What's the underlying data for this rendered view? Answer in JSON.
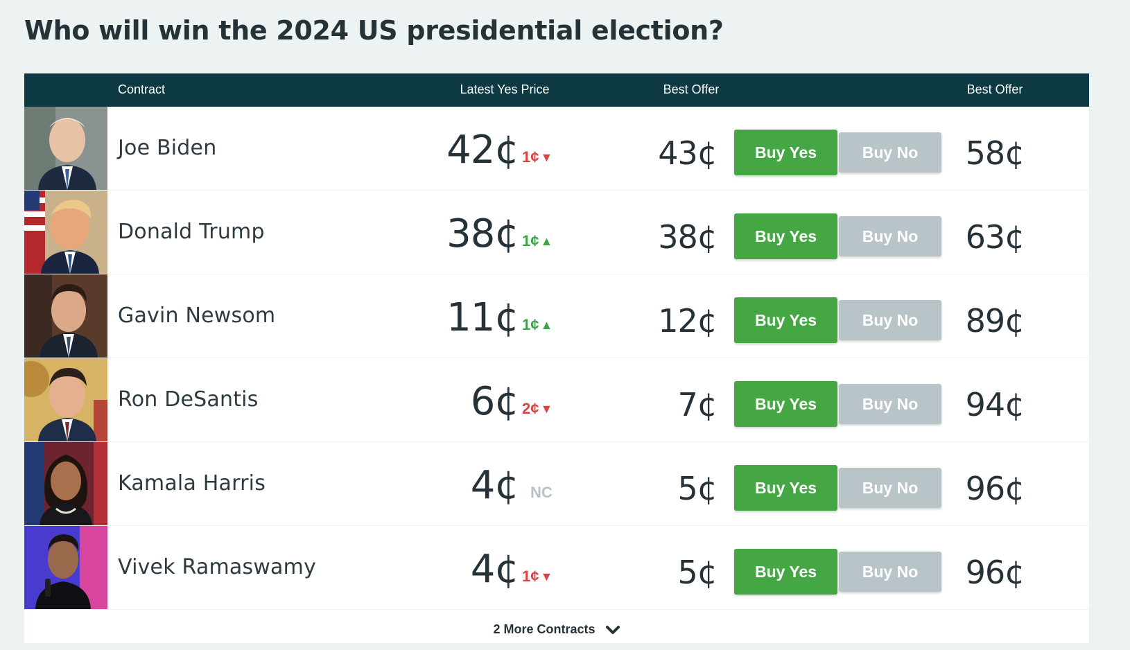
{
  "title": "Who will win the 2024 US presidential election?",
  "headers": {
    "contract": "Contract",
    "latest_yes_price": "Latest Yes Price",
    "best_offer_yes": "Best Offer",
    "best_offer_no": "Best Offer"
  },
  "contracts": [
    {
      "name": "Joe Biden",
      "latest": "42¢",
      "change": "1¢",
      "direction": "down",
      "best_yes": "43¢",
      "buy_yes": "Buy Yes",
      "buy_no": "Buy No",
      "best_no": "58¢"
    },
    {
      "name": "Donald Trump",
      "latest": "38¢",
      "change": "1¢",
      "direction": "up",
      "best_yes": "38¢",
      "buy_yes": "Buy Yes",
      "buy_no": "Buy No",
      "best_no": "63¢"
    },
    {
      "name": "Gavin Newsom",
      "latest": "11¢",
      "change": "1¢",
      "direction": "up",
      "best_yes": "12¢",
      "buy_yes": "Buy Yes",
      "buy_no": "Buy No",
      "best_no": "89¢"
    },
    {
      "name": "Ron DeSantis",
      "latest": "6¢",
      "change": "2¢",
      "direction": "down",
      "best_yes": "7¢",
      "buy_yes": "Buy Yes",
      "buy_no": "Buy No",
      "best_no": "94¢"
    },
    {
      "name": "Kamala Harris",
      "latest": "4¢",
      "change": "NC",
      "direction": "none",
      "best_yes": "5¢",
      "buy_yes": "Buy Yes",
      "buy_no": "Buy No",
      "best_no": "96¢"
    },
    {
      "name": "Vivek Ramaswamy",
      "latest": "4¢",
      "change": "1¢",
      "direction": "down",
      "best_yes": "5¢",
      "buy_yes": "Buy Yes",
      "buy_no": "Buy No",
      "best_no": "96¢"
    }
  ],
  "more_contracts": "2 More Contracts",
  "colors": {
    "header_bg": "#0d3a42",
    "buy_yes": "#45a744",
    "buy_no": "#b8c4c7",
    "up": "#3aa546",
    "down": "#d94444",
    "nc": "#b8c1c4"
  },
  "icons": {
    "down": "arrow-down-icon",
    "up": "arrow-up-icon",
    "expand": "chevron-down-icon"
  }
}
